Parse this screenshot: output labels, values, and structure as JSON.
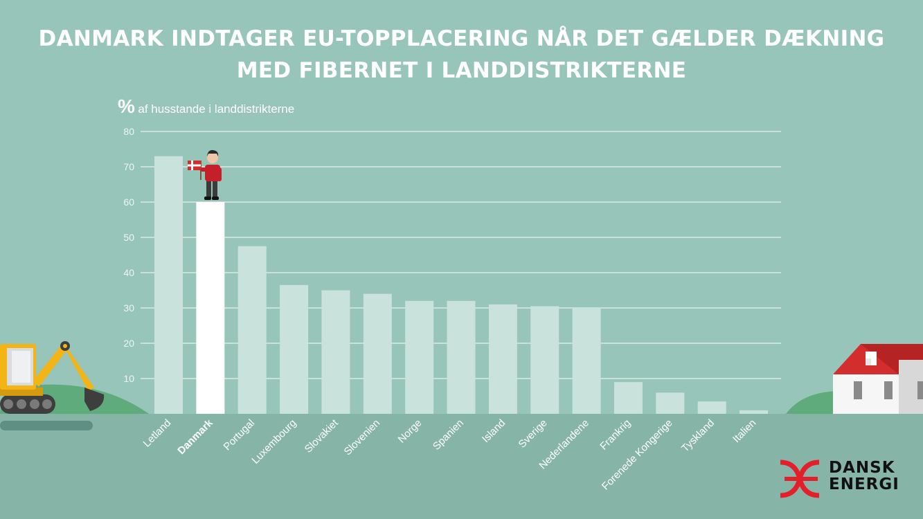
{
  "title_line1": "DANMARK INDTAGER EU-TOPPLACERING NÅR DET GÆLDER DÆKNING",
  "title_line2": "MED FIBERNET I LANDDISTRIKTERNE",
  "unit_symbol": "%",
  "unit_label": "af husstande i landdistrikterne",
  "logo": {
    "line1": "DANSK",
    "line2": "ENERGI"
  },
  "colors": {
    "background": "#97c5ba",
    "ground": "#86b5a8",
    "bar": "#c9e2dc",
    "highlight_bar": "#ffffff",
    "logo_red": "#e3202a",
    "excavator_yellow": "#f2b515",
    "roof_red": "#d42d2d"
  },
  "chart_data": {
    "type": "bar",
    "categories": [
      "Letland",
      "Danmark",
      "Portugal",
      "Luxembourg",
      "Slovakiet",
      "Slovenien",
      "Norge",
      "Spanien",
      "Island",
      "Sverige",
      "Nederlandene",
      "Frankrig",
      "Forenede Kongerige",
      "Tyskland",
      "Italien"
    ],
    "values": [
      73,
      60,
      47.5,
      36.5,
      35,
      34,
      32,
      32,
      31,
      30.5,
      30,
      9,
      6,
      3.5,
      1
    ],
    "highlight": "Danmark",
    "ylim": [
      0,
      80
    ],
    "yticks": [
      10,
      20,
      30,
      40,
      50,
      60,
      70,
      80
    ],
    "ylabel": "% af husstande i landdistrikterne",
    "xlabel": "",
    "grid": true,
    "icons": [
      "excavator-icon",
      "person-with-danish-flag-icon",
      "house-icon"
    ]
  }
}
